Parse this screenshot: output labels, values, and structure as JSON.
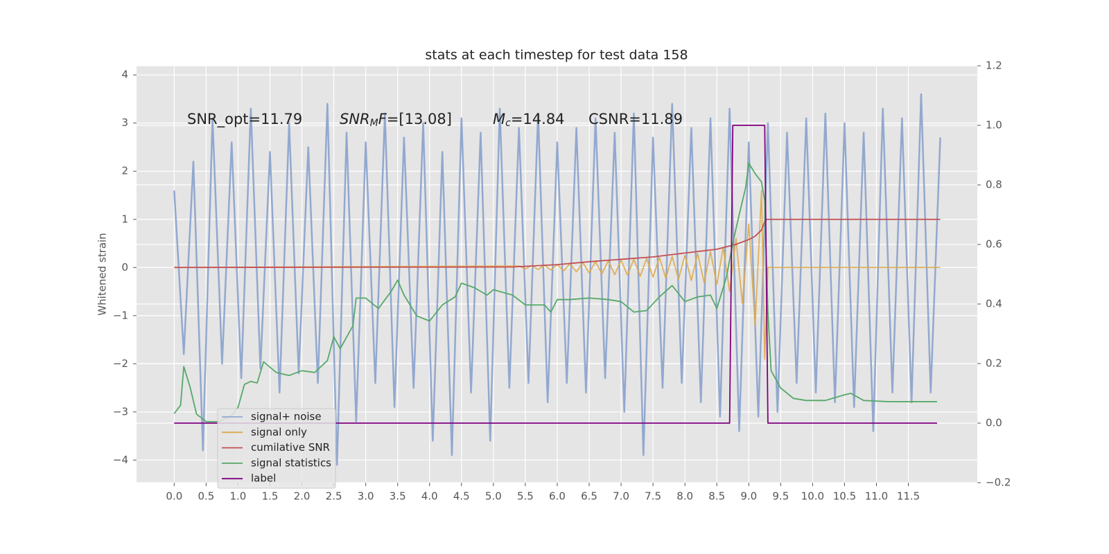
{
  "chart_data": {
    "type": "line",
    "title": "stats at each timestep for test data 158",
    "ylabel": "Whitened strain",
    "grid": true,
    "legend": "lower left",
    "annotations": [
      "SNR_opt=11.79",
      [
        "SNR",
        "M",
        "F",
        "=[13.08]"
      ],
      [
        "M",
        "c",
        "=14.84"
      ],
      "CSNR=11.89"
    ],
    "xlim": [
      -0.59,
      12.58
    ],
    "ylim": [
      -4.47,
      4.19
    ],
    "y2lim": [
      -0.2,
      1.2
    ],
    "xticks": [
      {
        "value": 0,
        "label": "0.0"
      },
      0.5,
      {
        "value": 1,
        "label": "1.0"
      },
      1.5,
      {
        "value": 2,
        "label": "2.0"
      },
      2.5,
      {
        "value": 3,
        "label": "3.0"
      },
      3.5,
      {
        "value": 4,
        "label": "4.0"
      },
      4.5,
      {
        "value": 5,
        "label": "5.0"
      },
      5.5,
      {
        "value": 6,
        "label": "6.0"
      },
      6.5,
      {
        "value": 7,
        "label": "7.0"
      },
      7.5,
      {
        "value": 8,
        "label": "8.0"
      },
      8.5,
      {
        "value": 9,
        "label": "9.0"
      },
      9.5,
      {
        "value": 10,
        "label": "10.0"
      },
      10.5,
      {
        "value": 11,
        "label": "11.0"
      },
      11.5
    ],
    "yticks": [
      {
        "value": -4,
        "label": "−4"
      },
      {
        "value": -3,
        "label": "−3"
      },
      {
        "value": -2,
        "label": "−2"
      },
      {
        "value": -1,
        "label": "−1"
      },
      0,
      1,
      2,
      3,
      4
    ],
    "y2ticks": [
      {
        "value": -0.2,
        "label": "−0.2"
      },
      {
        "value": 0,
        "label": "0.0"
      },
      0.2,
      0.4,
      0.6,
      0.8,
      {
        "value": 1,
        "label": "1.0"
      },
      1.2
    ],
    "series": [
      {
        "name": "signal+ noise",
        "color": "#92a8cf",
        "x": [
          0,
          0.15,
          0.3,
          0.45,
          0.6,
          0.75,
          0.9,
          1.05,
          1.2,
          1.35,
          1.5,
          1.65,
          1.8,
          1.95,
          2.1,
          2.25,
          2.4,
          2.55,
          2.7,
          2.85,
          3.0,
          3.15,
          3.3,
          3.45,
          3.6,
          3.75,
          3.9,
          4.05,
          4.2,
          4.35,
          4.5,
          4.65,
          4.8,
          4.95,
          5.1,
          5.25,
          5.4,
          5.55,
          5.7,
          5.85,
          6.0,
          6.15,
          6.3,
          6.45,
          6.6,
          6.75,
          6.9,
          7.05,
          7.2,
          7.35,
          7.5,
          7.65,
          7.8,
          7.95,
          8.1,
          8.25,
          8.4,
          8.55,
          8.7,
          8.85,
          9.0,
          9.15,
          9.3,
          9.45,
          9.6,
          9.75,
          9.9,
          10.05,
          10.2,
          10.35,
          10.5,
          10.65,
          10.8,
          10.95,
          11.1,
          11.25,
          11.4,
          11.55,
          11.7,
          11.85,
          12.0
        ],
        "values": [
          1.6,
          -1.8,
          2.2,
          -3.8,
          3.1,
          -2.0,
          2.6,
          -2.3,
          3.3,
          -2.1,
          2.4,
          -2.6,
          3.0,
          -2.2,
          2.5,
          -2.4,
          3.4,
          -4.1,
          2.8,
          -3.2,
          2.6,
          -2.4,
          3.2,
          -2.9,
          2.7,
          -2.5,
          3.0,
          -3.6,
          2.4,
          -3.9,
          3.1,
          -2.6,
          2.8,
          -3.6,
          3.3,
          -2.5,
          2.9,
          -2.4,
          3.2,
          -2.8,
          2.6,
          -2.4,
          2.9,
          -2.6,
          3.1,
          -2.3,
          2.8,
          -3.0,
          3.2,
          -3.9,
          2.7,
          -2.5,
          3.4,
          -2.4,
          2.9,
          -2.8,
          3.1,
          -3.1,
          3.3,
          -3.4,
          2.6,
          -3.1,
          3.0,
          -3.0,
          2.8,
          -2.4,
          3.1,
          -2.6,
          3.2,
          -2.8,
          3.0,
          -2.9,
          2.8,
          -3.4,
          3.3,
          -2.6,
          3.1,
          -2.8,
          3.6,
          -2.6,
          2.7
        ]
      },
      {
        "name": "signal only",
        "color": "#dda84a",
        "x": [
          0,
          5.4,
          5.5,
          5.6,
          5.7,
          5.8,
          5.9,
          6.0,
          6.1,
          6.2,
          6.3,
          6.4,
          6.5,
          6.6,
          6.7,
          6.8,
          6.9,
          7.0,
          7.1,
          7.2,
          7.3,
          7.4,
          7.5,
          7.6,
          7.7,
          7.8,
          7.9,
          8.0,
          8.1,
          8.2,
          8.3,
          8.4,
          8.5,
          8.6,
          8.7,
          8.8,
          8.9,
          9.0,
          9.1,
          9.2,
          9.25,
          9.3,
          12.0
        ],
        "values": [
          0,
          0.03,
          -0.03,
          0.04,
          -0.04,
          0.05,
          -0.05,
          0.06,
          -0.07,
          0.08,
          -0.09,
          0.1,
          -0.11,
          0.12,
          -0.13,
          0.14,
          -0.15,
          0.15,
          -0.16,
          0.17,
          -0.18,
          0.19,
          -0.2,
          0.21,
          -0.22,
          0.23,
          -0.24,
          0.25,
          -0.27,
          0.29,
          -0.31,
          0.33,
          -0.35,
          0.42,
          -0.5,
          0.6,
          -0.75,
          0.9,
          -1.2,
          1.6,
          -1.9,
          0,
          0
        ]
      },
      {
        "name": "cumilative SNR",
        "color": "#c44e52",
        "x": [
          0,
          5.3,
          6.0,
          6.5,
          7.0,
          7.5,
          8.0,
          8.5,
          8.8,
          9.0,
          9.1,
          9.2,
          9.25,
          9.28,
          12.0
        ],
        "values": [
          0,
          0.01,
          0.06,
          0.12,
          0.17,
          0.22,
          0.3,
          0.38,
          0.48,
          0.58,
          0.65,
          0.78,
          0.95,
          1.0,
          1.0
        ]
      },
      {
        "name": "signal statistics",
        "color": "#55a868",
        "axis": "y2",
        "x": [
          0,
          0.1,
          0.15,
          0.25,
          0.35,
          0.5,
          0.7,
          0.9,
          1.0,
          1.1,
          1.2,
          1.3,
          1.4,
          1.6,
          1.8,
          2.0,
          2.2,
          2.4,
          2.5,
          2.6,
          2.8,
          2.85,
          3.0,
          3.2,
          3.4,
          3.5,
          3.6,
          3.8,
          4.0,
          4.2,
          4.4,
          4.5,
          4.7,
          4.9,
          5.0,
          5.3,
          5.5,
          5.8,
          5.9,
          6.0,
          6.2,
          6.5,
          6.8,
          7.0,
          7.2,
          7.4,
          7.6,
          7.8,
          8.0,
          8.2,
          8.4,
          8.5,
          8.65,
          8.75,
          8.85,
          8.95,
          9.0,
          9.1,
          9.2,
          9.25,
          9.3,
          9.35,
          9.5,
          9.7,
          9.9,
          10.2,
          10.5,
          10.6,
          10.8,
          11.2,
          11.5,
          11.95
        ],
        "values": [
          0.032,
          0.06,
          0.19,
          0.12,
          0.03,
          0.005,
          0.005,
          0.025,
          0.053,
          0.13,
          0.14,
          0.135,
          0.206,
          0.17,
          0.16,
          0.176,
          0.17,
          0.21,
          0.29,
          0.25,
          0.327,
          0.42,
          0.42,
          0.385,
          0.443,
          0.48,
          0.43,
          0.36,
          0.343,
          0.397,
          0.424,
          0.47,
          0.455,
          0.43,
          0.448,
          0.43,
          0.397,
          0.397,
          0.373,
          0.415,
          0.415,
          0.42,
          0.415,
          0.408,
          0.373,
          0.378,
          0.424,
          0.462,
          0.408,
          0.424,
          0.43,
          0.385,
          0.49,
          0.605,
          0.7,
          0.79,
          0.873,
          0.838,
          0.81,
          0.745,
          0.373,
          0.176,
          0.118,
          0.083,
          0.076,
          0.076,
          0.095,
          0.1,
          0.076,
          0.072,
          0.072,
          0.072
        ]
      },
      {
        "name": "label",
        "color": "#800080",
        "axis": "y2",
        "x": [
          0,
          8.7,
          8.75,
          9.25,
          9.3,
          11.95
        ],
        "values": [
          0,
          0,
          1,
          1,
          0,
          0
        ]
      }
    ]
  }
}
